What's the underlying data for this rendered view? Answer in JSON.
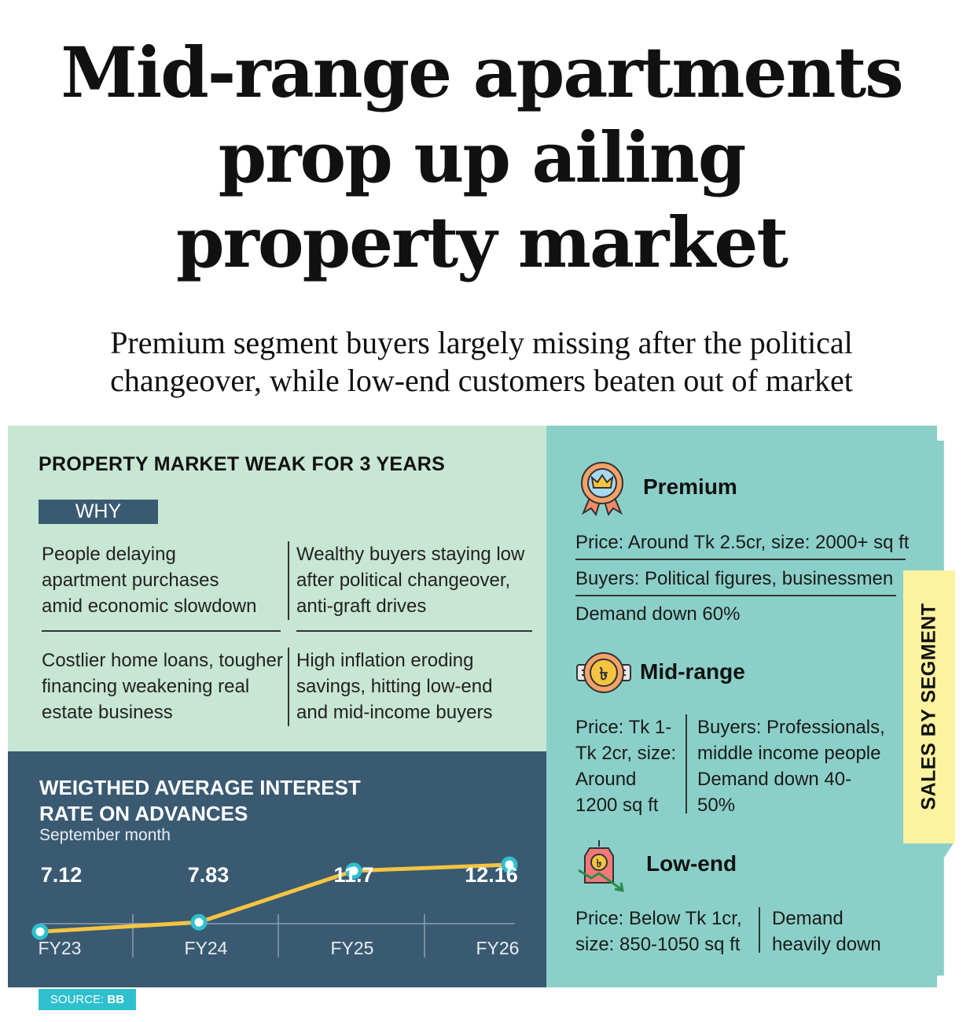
{
  "headline": [
    "Mid-range apartments",
    "prop up ailing",
    "property market"
  ],
  "subhead": [
    "Premium segment buyers largely missing after the political",
    "changeover, while low-end customers beaten out of market"
  ],
  "why_panel": {
    "title": "PROPERTY MARKET WEAK FOR 3 YEARS",
    "tag": "WHY",
    "reasons": [
      [
        "People delaying",
        "apartment purchases",
        "amid economic slowdown"
      ],
      [
        "Wealthy buyers staying low",
        "after political changeover,",
        "anti-graft drives"
      ],
      [
        "Costlier home loans, tougher",
        "financing weakening real",
        "estate business"
      ],
      [
        "High inflation eroding",
        "savings, hitting low-end",
        "and mid-income buyers"
      ]
    ]
  },
  "chart_data": {
    "type": "line",
    "title": [
      "WEIGTHED AVERAGE INTEREST",
      "RATE ON ADVANCES"
    ],
    "subtitle": "September month",
    "categories": [
      "FY23",
      "FY24",
      "FY25",
      "FY26"
    ],
    "values": [
      7.12,
      7.83,
      11.7,
      12.16
    ],
    "labels": [
      "7.12",
      "7.83",
      "11.7",
      "12.16"
    ],
    "ylim": [
      5,
      14
    ],
    "line_color": "#f5c542",
    "marker_color": "#2ec0cf"
  },
  "source": {
    "label": "SOURCE:",
    "value": "BB"
  },
  "segments_tab": "SALES BY SEGMENT",
  "segments": {
    "premium": {
      "name": "Premium",
      "price": "Price: Around Tk 2.5cr, size: 2000+ sq ft",
      "buyers": "Buyers: Political figures, businessmen",
      "demand": "Demand down 60%"
    },
    "midrange": {
      "name": "Mid-range",
      "price": [
        "Price: Tk 1-",
        "Tk 2cr, size:",
        "Around",
        "1200 sq ft"
      ],
      "buyers": [
        "Buyers: Professionals,",
        "middle income people",
        "Demand down 40-",
        "50%"
      ]
    },
    "lowend": {
      "name": "Low-end",
      "price": [
        "Price: Below Tk 1cr,",
        "size: 850-1050 sq ft"
      ],
      "demand": [
        "Demand",
        "heavily down"
      ]
    }
  },
  "colors": {
    "navy": "#3a5a72",
    "mint": "#c8e6d4",
    "teal": "#8bd0c8",
    "yellow": "#fbf3a0",
    "cyan": "#2ec0cf"
  }
}
